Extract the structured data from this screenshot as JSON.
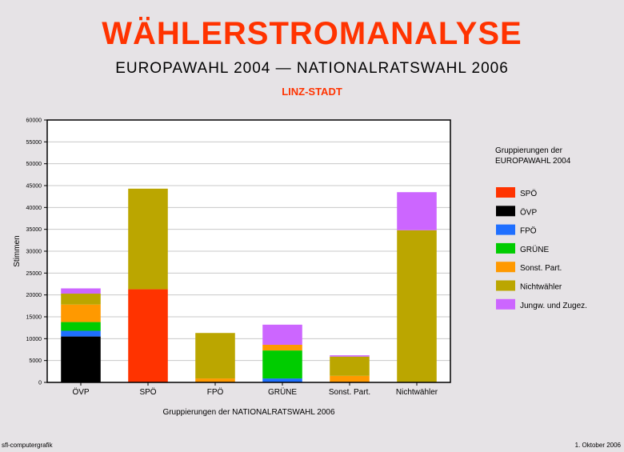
{
  "chart_data": {
    "type": "bar",
    "stacked": true,
    "title": "WÄHLERSTROMANALYSE",
    "subtitle": "EUROPAWAHL 2004 — NATIONALRATSWAHL 2006",
    "region": "LINZ-STADT",
    "xlabel": "Gruppierungen der NATIONALRATSWAHL 2006",
    "ylabel": "Stimmen",
    "ylim": [
      0,
      60000
    ],
    "yticks": [
      0,
      5000,
      10000,
      15000,
      20000,
      25000,
      30000,
      35000,
      40000,
      45000,
      50000,
      55000,
      60000
    ],
    "grid": true,
    "legend_position": "right",
    "legend_title_lines": [
      "Gruppierungen der",
      "EUROPAWAHL  2004"
    ],
    "categories": [
      "ÖVP",
      "SPÖ",
      "FPÖ",
      "GRÜNE",
      "Sonst. Part.",
      "Nichtwähler"
    ],
    "series": [
      {
        "name": "SPÖ",
        "color": "#ff3300",
        "values": [
          0,
          21300,
          0,
          0,
          0,
          0
        ]
      },
      {
        "name": "ÖVP",
        "color": "#000000",
        "values": [
          10500,
          0,
          0,
          0,
          0,
          0
        ]
      },
      {
        "name": "FPÖ",
        "color": "#1f6fff",
        "values": [
          1300,
          0,
          0,
          900,
          0,
          0
        ]
      },
      {
        "name": "GRÜNE",
        "color": "#00cc00",
        "values": [
          2000,
          0,
          0,
          6400,
          0,
          0
        ]
      },
      {
        "name": "Sonst. Part.",
        "color": "#ff9900",
        "values": [
          4000,
          0,
          900,
          1300,
          1500,
          0
        ]
      },
      {
        "name": "Nichtwähler",
        "color": "#bba600",
        "values": [
          2500,
          23000,
          10400,
          0,
          4400,
          34800
        ]
      },
      {
        "name": "Jungw.  und  Zugez.",
        "color": "#cc66ff",
        "values": [
          1200,
          0,
          0,
          4600,
          300,
          8700
        ]
      }
    ]
  },
  "footer": {
    "left": "sfl-computergrafik",
    "right": "1. Oktober 2006"
  }
}
